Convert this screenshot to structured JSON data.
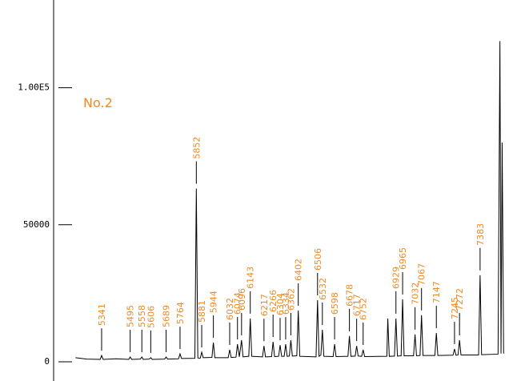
{
  "chart_data": {
    "type": "line",
    "annotation": "No.2",
    "xlim": [
      5082,
      7539
    ],
    "ylim": [
      -7000,
      132000
    ],
    "yticks": [
      0,
      50000,
      {
        "value": 100000,
        "label": "1.00E5"
      }
    ],
    "color": "#000000",
    "label_color": "#f08a24",
    "peak_labels": [
      5341,
      5495,
      5558,
      5606,
      5689,
      5764,
      5852,
      5881,
      5944,
      6032,
      6074,
      6096,
      6143,
      6217,
      6266,
      6304,
      6334,
      6362,
      6402,
      6506,
      6532,
      6598,
      6678,
      6717,
      6752,
      6929,
      6965,
      7032,
      7067,
      7147,
      7245,
      7272,
      7383
    ],
    "x": [
      5200,
      5260,
      5333,
      5341,
      5349,
      5420,
      5487,
      5495,
      5503,
      5550,
      5558,
      5566,
      5598,
      5606,
      5614,
      5681,
      5689,
      5697,
      5756,
      5764,
      5772,
      5844,
      5852,
      5860,
      5873,
      5881,
      5889,
      5936,
      5944,
      5952,
      6024,
      6032,
      6040,
      6066,
      6074,
      6084,
      6096,
      6104,
      6135,
      6143,
      6151,
      6209,
      6217,
      6225,
      6258,
      6266,
      6274,
      6296,
      6304,
      6312,
      6326,
      6334,
      6342,
      6354,
      6362,
      6370,
      6394,
      6402,
      6410,
      6498,
      6506,
      6514,
      6524,
      6532,
      6540,
      6590,
      6598,
      6606,
      6670,
      6678,
      6686,
      6709,
      6717,
      6725,
      6744,
      6752,
      6760,
      6880,
      6885,
      6893,
      6921,
      6929,
      6937,
      6957,
      6965,
      6973,
      7024,
      7032,
      7040,
      7059,
      7067,
      7075,
      7139,
      7147,
      7155,
      7237,
      7245,
      7253,
      7264,
      7272,
      7280,
      7375,
      7383,
      7391,
      7480,
      7490,
      7496,
      7502,
      7510
    ],
    "values": [
      1500,
      1000,
      900,
      2300,
      900,
      1100,
      900,
      1750,
      900,
      1000,
      1750,
      900,
      1000,
      1500,
      900,
      1000,
      1750,
      1000,
      1100,
      2900,
      1200,
      1300,
      63200,
      1400,
      1300,
      3500,
      1500,
      1600,
      7000,
      1500,
      1500,
      4400,
      1600,
      1700,
      6400,
      1800,
      7900,
      1800,
      2000,
      15800,
      2000,
      1800,
      5800,
      1800,
      1900,
      7300,
      1900,
      2000,
      6100,
      2000,
      2000,
      6400,
      2000,
      2100,
      7900,
      2100,
      2200,
      18700,
      2000,
      1800,
      22500,
      2000,
      2500,
      11700,
      2000,
      1900,
      6400,
      1900,
      2000,
      9400,
      2000,
      2100,
      5800,
      2100,
      2000,
      4400,
      1900,
      2000,
      15800,
      2000,
      2100,
      15800,
      2100,
      2200,
      22800,
      2200,
      2200,
      10000,
      2200,
      2300,
      17000,
      2300,
      2300,
      10500,
      2300,
      2400,
      4700,
      2400,
      2500,
      7900,
      2500,
      2500,
      31600,
      2600,
      2800,
      117000,
      3000,
      80000,
      3000
    ]
  }
}
